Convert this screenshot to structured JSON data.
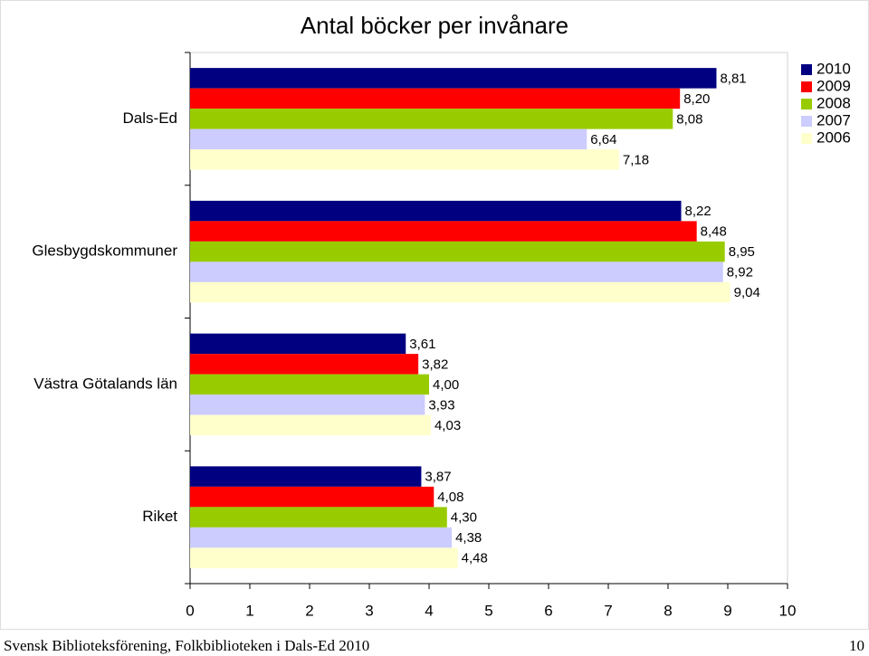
{
  "chart_data": {
    "type": "hbar",
    "title": "Antal böcker per invånare",
    "categories": [
      "Dals-Ed",
      "Glesbygdskommuner",
      "Västra Götalands län",
      "Riket"
    ],
    "series": [
      {
        "name": "2010",
        "color": "#000080",
        "values": [
          8.81,
          8.22,
          3.61,
          3.87
        ],
        "value_labels": [
          "8,81",
          "8,22",
          "3,61",
          "3,87"
        ]
      },
      {
        "name": "2009",
        "color": "#ff0000",
        "values": [
          8.2,
          8.48,
          3.82,
          4.08
        ],
        "value_labels": [
          "8,20",
          "8,48",
          "3,82",
          "4,08"
        ]
      },
      {
        "name": "2008",
        "color": "#99cc00",
        "values": [
          8.08,
          8.95,
          4.0,
          4.3
        ],
        "value_labels": [
          "8,08",
          "8,95",
          "4,00",
          "4,30"
        ]
      },
      {
        "name": "2007",
        "color": "#ccccff",
        "values": [
          6.64,
          8.92,
          3.93,
          4.38
        ],
        "value_labels": [
          "6,64",
          "8,92",
          "3,93",
          "4,38"
        ]
      },
      {
        "name": "2006",
        "color": "#ffffcc",
        "values": [
          7.18,
          9.04,
          4.03,
          4.48
        ],
        "value_labels": [
          "7,18",
          "9,04",
          "4,03",
          "4,48"
        ]
      }
    ],
    "xlim": [
      0,
      10
    ],
    "xticks": [
      0,
      1,
      2,
      3,
      4,
      5,
      6,
      7,
      8,
      9,
      10
    ],
    "grid": false,
    "legend": "top-right"
  },
  "footer": {
    "text": "Svensk Biblioteksförening, Folkbiblioteken i Dals-Ed 2010",
    "page": "10"
  }
}
